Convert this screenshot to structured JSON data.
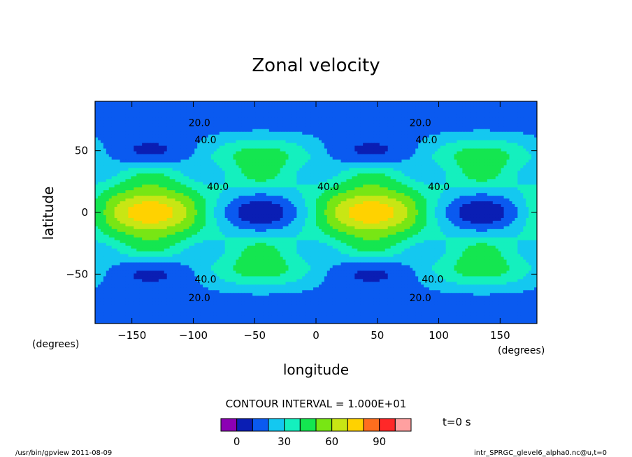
{
  "chart_data": {
    "type": "heatmap",
    "title": "Zonal velocity",
    "xlabel": "longitude",
    "ylabel": "latitude",
    "x_unit": "(degrees)",
    "y_unit": "(degrees)",
    "xlim": [
      -180,
      180
    ],
    "ylim": [
      -90,
      90
    ],
    "x_ticks": [
      -150,
      -100,
      -50,
      0,
      50,
      100,
      150
    ],
    "y_ticks": [
      -50,
      0,
      50
    ],
    "x_tick_labels": [
      "−150",
      "−100",
      "−50",
      "0",
      "50",
      "100",
      "150"
    ],
    "y_tick_labels": [
      "−50",
      "0",
      "50"
    ],
    "contour_interval_text": "CONTOUR INTERVAL = 1.000E+01",
    "contour_levels": [
      0,
      10,
      20,
      30,
      40,
      50,
      60,
      70,
      80,
      90,
      100
    ],
    "contour_labels": [
      {
        "text": "20.0",
        "lon": -95,
        "lat": 70
      },
      {
        "text": "40.0",
        "lon": -90,
        "lat": 56
      },
      {
        "text": "20.0",
        "lon": 85,
        "lat": 70
      },
      {
        "text": "40.0",
        "lon": 90,
        "lat": 56
      },
      {
        "text": "40.0",
        "lon": -80,
        "lat": 18
      },
      {
        "text": "40.0",
        "lon": 10,
        "lat": 18
      },
      {
        "text": "40.0",
        "lon": 100,
        "lat": 18
      },
      {
        "text": "40.0",
        "lon": -90,
        "lat": -57
      },
      {
        "text": "20.0",
        "lon": -95,
        "lat": -72
      },
      {
        "text": "40.0",
        "lon": 95,
        "lat": -57
      },
      {
        "text": "20.0",
        "lon": 85,
        "lat": -72
      }
    ],
    "colorbar": {
      "colors": [
        "#8c00b4",
        "#0a1eb4",
        "#0a5af0",
        "#14c8f0",
        "#14f0be",
        "#14e650",
        "#78e614",
        "#c8e614",
        "#ffd200",
        "#ff6e1e",
        "#ff2828",
        "#ffa0a0"
      ],
      "tick_values": [
        0,
        30,
        60,
        90
      ],
      "tick_labels": [
        "0",
        "30",
        "60",
        "90"
      ]
    },
    "colormap": [
      "#0a1eb4",
      "#0a5af0",
      "#14c8f0",
      "#14f0be",
      "#14e650",
      "#78e614",
      "#c8e614",
      "#ffd200",
      "#ff6e1e",
      "#ff2828"
    ],
    "grid": false
  },
  "info": {
    "time": "t=0  s",
    "footer_left": "/usr/bin/gpview  2011-08-09",
    "footer_right": "intr_SPRGC_glevel6_alpha0.nc@u,t=0"
  }
}
